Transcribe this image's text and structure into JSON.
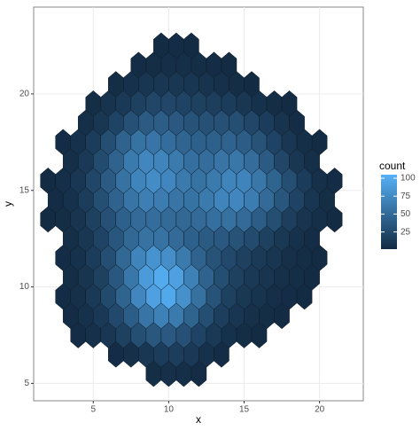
{
  "chart_data": {
    "type": "hexbin",
    "x_label": "x",
    "y_label": "y",
    "xlim": [
      1.05,
      22.9
    ],
    "xticks": [
      5,
      10,
      15,
      20
    ],
    "ylim": [
      4.1,
      24.5
    ],
    "yticks": [
      5,
      10,
      15,
      20
    ],
    "grid": true,
    "fill_scale": {
      "title": "count",
      "low": "#132B43",
      "high": "#56B1F7",
      "limits": [
        1,
        105
      ],
      "ticks": [
        25,
        50,
        75,
        100
      ]
    },
    "rows": [
      {
        "y": 5.5,
        "x": [
          9,
          10,
          11,
          12
        ],
        "values": [
          3,
          5,
          4,
          2
        ]
      },
      {
        "y": 6.5,
        "x": [
          6.5,
          7.5,
          8.5,
          9.5,
          10.5,
          11.5,
          12.5,
          13.5
        ],
        "values": [
          2,
          5,
          10,
          14,
          15,
          12,
          6,
          2
        ]
      },
      {
        "y": 7.5,
        "x": [
          4,
          5,
          6,
          7,
          8,
          9,
          10,
          11,
          12,
          13,
          14,
          15,
          16
        ],
        "values": [
          2,
          5,
          10,
          18,
          28,
          35,
          36,
          30,
          20,
          12,
          6,
          3,
          1
        ]
      },
      {
        "y": 8.5,
        "x": [
          3.5,
          4.5,
          5.5,
          6.5,
          7.5,
          8.5,
          9.5,
          10.5,
          11.5,
          12.5,
          13.5,
          14.5,
          15.5,
          16.5,
          17.5
        ],
        "values": [
          2,
          6,
          12,
          24,
          40,
          58,
          68,
          62,
          45,
          28,
          16,
          9,
          5,
          3,
          1
        ]
      },
      {
        "y": 9.5,
        "x": [
          3,
          4,
          5,
          6,
          7,
          8,
          9,
          10,
          11,
          12,
          13,
          14,
          15,
          16,
          17,
          18,
          19
        ],
        "values": [
          2,
          5,
          12,
          25,
          45,
          72,
          92,
          98,
          80,
          55,
          32,
          18,
          11,
          7,
          4,
          2,
          1
        ]
      },
      {
        "y": 10.5,
        "x": [
          3.5,
          4.5,
          5.5,
          6.5,
          7.5,
          8.5,
          9.5,
          10.5,
          11.5,
          12.5,
          13.5,
          14.5,
          15.5,
          16.5,
          17.5,
          18.5,
          19.5
        ],
        "values": [
          3,
          8,
          18,
          35,
          60,
          88,
          100,
          92,
          68,
          44,
          28,
          18,
          12,
          8,
          5,
          3,
          1
        ]
      },
      {
        "y": 11.5,
        "x": [
          3,
          4,
          5,
          6,
          7,
          8,
          9,
          10,
          11,
          12,
          13,
          14,
          15,
          16,
          17,
          18,
          19,
          20
        ],
        "values": [
          2,
          6,
          14,
          28,
          48,
          70,
          82,
          78,
          62,
          44,
          32,
          24,
          18,
          13,
          9,
          5,
          3,
          1
        ]
      },
      {
        "y": 12.5,
        "x": [
          3.5,
          4.5,
          5.5,
          6.5,
          7.5,
          8.5,
          9.5,
          10.5,
          11.5,
          12.5,
          13.5,
          14.5,
          15.5,
          16.5,
          17.5,
          18.5,
          19.5
        ],
        "values": [
          4,
          10,
          20,
          34,
          48,
          56,
          56,
          50,
          42,
          38,
          36,
          32,
          26,
          18,
          11,
          6,
          2
        ]
      },
      {
        "y": 13.5,
        "x": [
          2,
          3,
          4,
          5,
          6,
          7,
          8,
          9,
          10,
          11,
          12,
          13,
          14,
          15,
          16,
          17,
          18,
          19,
          20,
          21
        ],
        "values": [
          1,
          3,
          8,
          18,
          30,
          42,
          50,
          52,
          50,
          48,
          50,
          54,
          55,
          50,
          40,
          28,
          16,
          8,
          4,
          1
        ]
      },
      {
        "y": 14.5,
        "x": [
          2.5,
          3.5,
          4.5,
          5.5,
          6.5,
          7.5,
          8.5,
          9.5,
          10.5,
          11.5,
          12.5,
          13.5,
          14.5,
          15.5,
          16.5,
          17.5,
          18.5,
          19.5,
          20.5
        ],
        "values": [
          2,
          6,
          14,
          28,
          44,
          58,
          66,
          64,
          58,
          56,
          62,
          70,
          72,
          64,
          50,
          34,
          20,
          9,
          3
        ]
      },
      {
        "y": 15.5,
        "x": [
          2,
          3,
          4,
          5,
          6,
          7,
          8,
          9,
          10,
          11,
          12,
          13,
          14,
          15,
          16,
          17,
          18,
          19,
          20,
          21
        ],
        "values": [
          1,
          4,
          10,
          22,
          38,
          56,
          70,
          76,
          72,
          62,
          56,
          62,
          70,
          70,
          60,
          45,
          28,
          14,
          5,
          2
        ]
      },
      {
        "y": 16.5,
        "x": [
          3.5,
          4.5,
          5.5,
          6.5,
          7.5,
          8.5,
          9.5,
          10.5,
          11.5,
          12.5,
          13.5,
          14.5,
          15.5,
          16.5,
          17.5,
          18.5,
          19.5
        ],
        "values": [
          4,
          12,
          26,
          44,
          62,
          72,
          70,
          62,
          54,
          52,
          58,
          60,
          52,
          38,
          22,
          10,
          4
        ]
      },
      {
        "y": 17.5,
        "x": [
          3,
          4,
          5,
          6,
          7,
          8,
          9,
          10,
          11,
          12,
          13,
          14,
          15,
          16,
          17,
          18,
          19,
          20
        ],
        "values": [
          2,
          6,
          14,
          28,
          44,
          56,
          58,
          52,
          46,
          42,
          42,
          44,
          40,
          32,
          20,
          10,
          4,
          1
        ]
      },
      {
        "y": 18.5,
        "x": [
          4.5,
          5.5,
          6.5,
          7.5,
          8.5,
          9.5,
          10.5,
          11.5,
          12.5,
          13.5,
          14.5,
          15.5,
          16.5,
          17.5,
          18.5
        ],
        "values": [
          4,
          10,
          20,
          30,
          38,
          40,
          36,
          32,
          30,
          30,
          28,
          22,
          14,
          7,
          2
        ]
      },
      {
        "y": 19.5,
        "x": [
          5,
          6,
          7,
          8,
          9,
          10,
          11,
          12,
          13,
          14,
          15,
          16,
          17,
          18
        ],
        "values": [
          3,
          7,
          12,
          18,
          22,
          22,
          20,
          18,
          16,
          14,
          10,
          6,
          3,
          1
        ]
      },
      {
        "y": 20.5,
        "x": [
          6.5,
          7.5,
          8.5,
          9.5,
          10.5,
          11.5,
          12.5,
          13.5,
          14.5,
          15.5
        ],
        "values": [
          3,
          6,
          9,
          10,
          10,
          9,
          7,
          5,
          3,
          1
        ]
      },
      {
        "y": 21.5,
        "x": [
          8,
          9,
          10,
          11,
          12,
          13,
          14
        ],
        "values": [
          2,
          3,
          4,
          4,
          3,
          2,
          1
        ]
      },
      {
        "y": 22.5,
        "x": [
          9.5,
          10.5,
          11.5
        ],
        "values": [
          1,
          2,
          1
        ]
      }
    ]
  }
}
